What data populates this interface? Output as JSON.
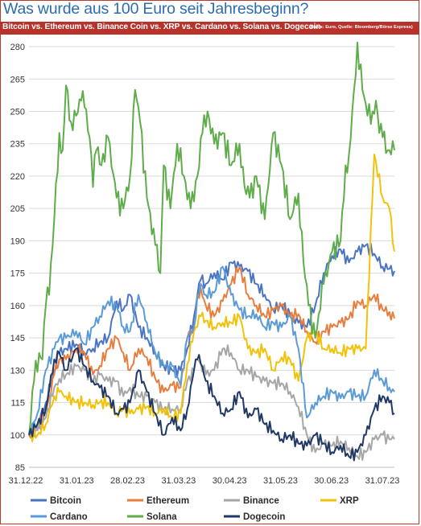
{
  "title": "Was wurde aus 100 Euro seit Jahresbeginn?",
  "subtitle": "Bitcoin vs. Ethereum vs. Binance Coin vs. XRP vs. Cardano vs. Solana vs. Dogecoin",
  "note": "(Basis: Euro, Quelle: Bloomberg/Börse Express)",
  "chart_data": {
    "type": "line",
    "title": "Was wurde aus 100 Euro seit Jahresbeginn?",
    "xlabel": "",
    "ylabel": "",
    "ylim": [
      85,
      283
    ],
    "yticks": [
      85,
      100,
      115,
      130,
      145,
      160,
      175,
      190,
      205,
      220,
      235,
      250,
      265,
      280
    ],
    "xticks": [
      "31.12.22",
      "31.01.23",
      "28.02.23",
      "31.03.23",
      "30.04.23",
      "31.05.23",
      "30.06.23",
      "31.07.23"
    ],
    "x_range": [
      0,
      217
    ],
    "grid": "horizontal",
    "legend": "bottom",
    "series": [
      {
        "name": "Bitcoin",
        "color": "#4a73c4",
        "x": [
          0,
          5,
          10,
          15,
          18,
          22,
          28,
          33,
          38,
          42,
          47,
          52,
          56,
          60,
          65,
          70,
          75,
          80,
          85,
          90,
          94,
          98,
          100,
          102,
          105,
          110,
          115,
          120,
          125,
          130,
          135,
          140,
          145,
          150,
          155,
          160,
          165,
          170,
          175,
          180,
          185,
          190,
          195,
          200,
          205,
          210,
          214,
          217
        ],
        "values": [
          100,
          105,
          115,
          130,
          138,
          140,
          142,
          138,
          140,
          143,
          145,
          162,
          158,
          165,
          150,
          145,
          138,
          132,
          130,
          130,
          140,
          155,
          165,
          172,
          170,
          175,
          172,
          180,
          178,
          176,
          170,
          165,
          158,
          160,
          156,
          152,
          150,
          160,
          175,
          183,
          186,
          180,
          185,
          188,
          184,
          178,
          177,
          176
        ]
      },
      {
        "name": "Ethereum",
        "color": "#e87d3e",
        "x": [
          0,
          5,
          10,
          15,
          18,
          22,
          28,
          33,
          38,
          42,
          47,
          52,
          56,
          60,
          65,
          70,
          75,
          80,
          85,
          90,
          94,
          98,
          100,
          102,
          105,
          110,
          115,
          120,
          125,
          130,
          135,
          140,
          145,
          150,
          155,
          160,
          165,
          170,
          175,
          180,
          185,
          190,
          195,
          200,
          205,
          210,
          214,
          217
        ],
        "values": [
          100,
          103,
          110,
          128,
          135,
          135,
          140,
          138,
          128,
          132,
          140,
          145,
          138,
          130,
          140,
          136,
          126,
          120,
          123,
          122,
          145,
          150,
          165,
          168,
          160,
          155,
          162,
          170,
          178,
          165,
          160,
          155,
          158,
          160,
          155,
          156,
          148,
          143,
          148,
          150,
          152,
          154,
          162,
          160,
          165,
          158,
          157,
          154
        ]
      },
      {
        "name": "Binance",
        "color": "#a6a6a6",
        "x": [
          0,
          5,
          10,
          15,
          18,
          22,
          28,
          33,
          38,
          42,
          47,
          52,
          56,
          60,
          65,
          70,
          75,
          80,
          85,
          90,
          94,
          98,
          100,
          102,
          105,
          110,
          115,
          120,
          125,
          130,
          135,
          140,
          145,
          150,
          155,
          160,
          165,
          170,
          175,
          180,
          185,
          190,
          195,
          200,
          205,
          210,
          214,
          217
        ],
        "values": [
          100,
          102,
          108,
          122,
          126,
          128,
          132,
          130,
          125,
          128,
          125,
          125,
          118,
          122,
          118,
          118,
          115,
          112,
          112,
          112,
          125,
          130,
          135,
          133,
          128,
          130,
          140,
          138,
          130,
          130,
          127,
          125,
          124,
          124,
          120,
          113,
          100,
          92,
          96,
          95,
          97,
          94,
          90,
          92,
          98,
          100,
          98,
          98
        ]
      },
      {
        "name": "XRP",
        "color": "#f2c20a",
        "x": [
          0,
          5,
          10,
          15,
          18,
          22,
          28,
          33,
          38,
          42,
          47,
          52,
          56,
          60,
          65,
          70,
          75,
          80,
          85,
          90,
          94,
          98,
          100,
          102,
          105,
          110,
          115,
          120,
          125,
          130,
          135,
          140,
          145,
          150,
          155,
          160,
          165,
          170,
          175,
          180,
          185,
          190,
          195,
          200,
          205,
          210,
          214,
          217
        ],
        "values": [
          100,
          100,
          105,
          118,
          120,
          118,
          115,
          115,
          114,
          115,
          115,
          110,
          112,
          110,
          112,
          113,
          110,
          112,
          108,
          110,
          133,
          148,
          150,
          155,
          153,
          150,
          152,
          152,
          155,
          140,
          138,
          140,
          130,
          136,
          135,
          125,
          145,
          148,
          140,
          140,
          138,
          140,
          140,
          140,
          230,
          210,
          205,
          185
        ]
      },
      {
        "name": "Cardano",
        "color": "#5b9bd5",
        "x": [
          0,
          5,
          10,
          15,
          18,
          22,
          28,
          33,
          38,
          42,
          47,
          52,
          56,
          60,
          65,
          70,
          75,
          80,
          85,
          90,
          94,
          98,
          100,
          102,
          105,
          110,
          115,
          120,
          125,
          130,
          135,
          140,
          145,
          150,
          155,
          160,
          165,
          170,
          175,
          180,
          185,
          190,
          195,
          200,
          205,
          210,
          214,
          217
        ],
        "values": [
          100,
          110,
          130,
          140,
          145,
          145,
          148,
          142,
          150,
          155,
          162,
          160,
          150,
          148,
          165,
          152,
          138,
          132,
          132,
          123,
          145,
          150,
          165,
          170,
          165,
          166,
          178,
          165,
          158,
          155,
          156,
          150,
          152,
          150,
          155,
          140,
          108,
          115,
          118,
          120,
          117,
          120,
          118,
          118,
          130,
          125,
          122,
          120
        ]
      },
      {
        "name": "Solana",
        "color": "#5eac4a",
        "x": [
          0,
          3,
          6,
          8,
          10,
          12,
          15,
          18,
          20,
          22,
          25,
          28,
          31,
          33,
          36,
          38,
          40,
          43,
          47,
          52,
          56,
          60,
          63,
          66,
          70,
          75,
          78,
          80,
          84,
          88,
          92,
          96,
          100,
          103,
          106,
          110,
          115,
          120,
          125,
          128,
          131,
          135,
          140,
          145,
          150,
          155,
          160,
          163,
          166,
          170,
          173,
          175,
          180,
          185,
          188,
          190,
          193,
          195,
          198,
          201,
          204,
          206,
          208,
          210,
          213,
          215,
          217
        ],
        "values": [
          100,
          125,
          138,
          135,
          160,
          165,
          200,
          240,
          232,
          262,
          245,
          248,
          255,
          252,
          238,
          215,
          232,
          225,
          238,
          210,
          205,
          220,
          260,
          245,
          210,
          188,
          175,
          225,
          205,
          235,
          220,
          205,
          220,
          240,
          250,
          235,
          240,
          225,
          235,
          215,
          210,
          220,
          200,
          240,
          225,
          200,
          212,
          180,
          160,
          145,
          158,
          170,
          185,
          190,
          225,
          230,
          260,
          282,
          260,
          248,
          250,
          255,
          240,
          238,
          232,
          230,
          232
        ]
      },
      {
        "name": "Dogecoin",
        "color": "#1f3864",
        "x": [
          0,
          5,
          10,
          15,
          18,
          22,
          28,
          33,
          38,
          42,
          47,
          52,
          56,
          60,
          65,
          70,
          75,
          80,
          85,
          90,
          94,
          98,
          100,
          102,
          105,
          110,
          115,
          120,
          125,
          130,
          135,
          140,
          145,
          150,
          155,
          160,
          165,
          170,
          175,
          180,
          185,
          190,
          195,
          200,
          205,
          210,
          214,
          217
        ],
        "values": [
          100,
          105,
          112,
          135,
          138,
          130,
          140,
          132,
          125,
          122,
          118,
          110,
          112,
          115,
          130,
          120,
          110,
          100,
          108,
          102,
          112,
          130,
          135,
          133,
          125,
          118,
          110,
          112,
          120,
          108,
          112,
          105,
          102,
          98,
          100,
          96,
          95,
          100,
          96,
          92,
          95,
          90,
          92,
          100,
          112,
          118,
          115,
          110
        ]
      }
    ]
  }
}
